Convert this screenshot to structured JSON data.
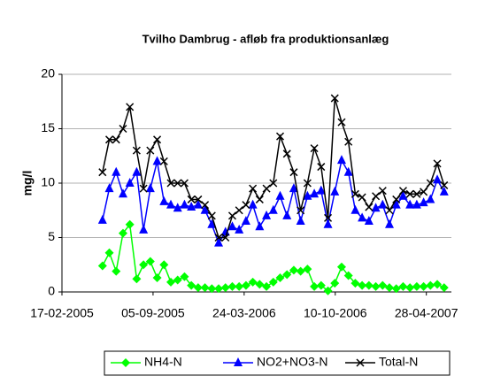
{
  "chart_data": {
    "type": "line",
    "title": "Tvilho Dambrug - afløb fra produktionsanlæg",
    "y_label": "mg/l",
    "x": [
      "17-05-2005",
      "01-06-2005",
      "16-06-2005",
      "01-07-2005",
      "16-07-2005",
      "31-07-2005",
      "15-08-2005",
      "30-08-2005",
      "14-09-2005",
      "29-09-2005",
      "14-10-2005",
      "29-10-2005",
      "13-11-2005",
      "28-11-2005",
      "13-12-2005",
      "28-12-2005",
      "12-01-2006",
      "27-01-2006",
      "11-02-2006",
      "26-02-2006",
      "13-03-2006",
      "28-03-2006",
      "12-04-2006",
      "27-04-2006",
      "12-05-2006",
      "27-05-2006",
      "11-06-2006",
      "26-06-2006",
      "11-07-2006",
      "26-07-2006",
      "10-08-2006",
      "25-08-2006",
      "09-09-2006",
      "24-09-2006",
      "09-10-2006",
      "24-10-2006",
      "08-11-2006",
      "23-11-2006",
      "08-12-2006",
      "23-12-2006",
      "07-01-2007",
      "22-01-2007",
      "06-02-2007",
      "21-02-2007",
      "08-03-2007",
      "23-03-2007",
      "07-04-2007",
      "22-04-2007",
      "07-05-2007",
      "22-05-2007",
      "06-06-2007"
    ],
    "series": [
      {
        "name": "NH4-N",
        "color": "#00ff00",
        "marker": "diamond",
        "values": [
          2.4,
          3.6,
          1.9,
          5.4,
          6.2,
          1.2,
          2.5,
          2.8,
          1.3,
          2.5,
          0.9,
          1.1,
          1.4,
          0.6,
          0.4,
          0.4,
          0.3,
          0.3,
          0.4,
          0.5,
          0.5,
          0.6,
          0.9,
          0.7,
          0.5,
          0.9,
          1.3,
          1.6,
          2,
          1.9,
          2.1,
          0.5,
          0.6,
          0.1,
          0.8,
          2.3,
          1.5,
          0.8,
          0.6,
          0.6,
          0.5,
          0.6,
          0.4,
          0.3,
          0.5,
          0.4,
          0.5,
          0.5,
          0.6,
          0.7,
          0.4
        ]
      },
      {
        "name": "NO2+NO3-N",
        "color": "#0000ff",
        "marker": "triangle",
        "values": [
          6.6,
          9.5,
          11,
          9,
          10,
          11,
          5.7,
          9.5,
          12,
          8.3,
          8,
          7.7,
          8,
          7.8,
          8,
          7.5,
          6.2,
          4.5,
          5.5,
          6,
          5.7,
          6.5,
          8,
          6,
          7,
          7.5,
          8.8,
          7,
          9.5,
          6.5,
          8.8,
          9,
          9.3,
          6.2,
          9.2,
          12.1,
          11,
          7.5,
          6.8,
          6.5,
          7.7,
          8,
          6.2,
          8,
          8.8,
          8,
          8,
          8.2,
          8.5,
          10.3,
          9.2
        ]
      },
      {
        "name": "Total-N",
        "color": "#000000",
        "marker": "x",
        "values": [
          11,
          14,
          14,
          15,
          17,
          13,
          9.5,
          13,
          14,
          12,
          10,
          10,
          10,
          8.5,
          8.5,
          8,
          7,
          5,
          5,
          7,
          7.5,
          8,
          9.5,
          8.5,
          9.5,
          10,
          14.3,
          12.7,
          11,
          7.5,
          10,
          13.2,
          11.5,
          6.8,
          17.8,
          15.6,
          13.8,
          9,
          8.7,
          7.8,
          8.8,
          9.3,
          7.5,
          8.5,
          9.3,
          9,
          9,
          9.2,
          10,
          11.8,
          9.8
        ]
      }
    ],
    "xlim": [
      "17-02-2005",
      "22-06-2007"
    ],
    "xticks": [
      "17-02-2005",
      "05-09-2005",
      "24-03-2006",
      "10-10-2006",
      "28-04-2007"
    ],
    "ylim": [
      0,
      20
    ],
    "yticks": [
      0,
      5,
      10,
      15,
      20
    ],
    "grid": true,
    "legend": "bottom"
  }
}
